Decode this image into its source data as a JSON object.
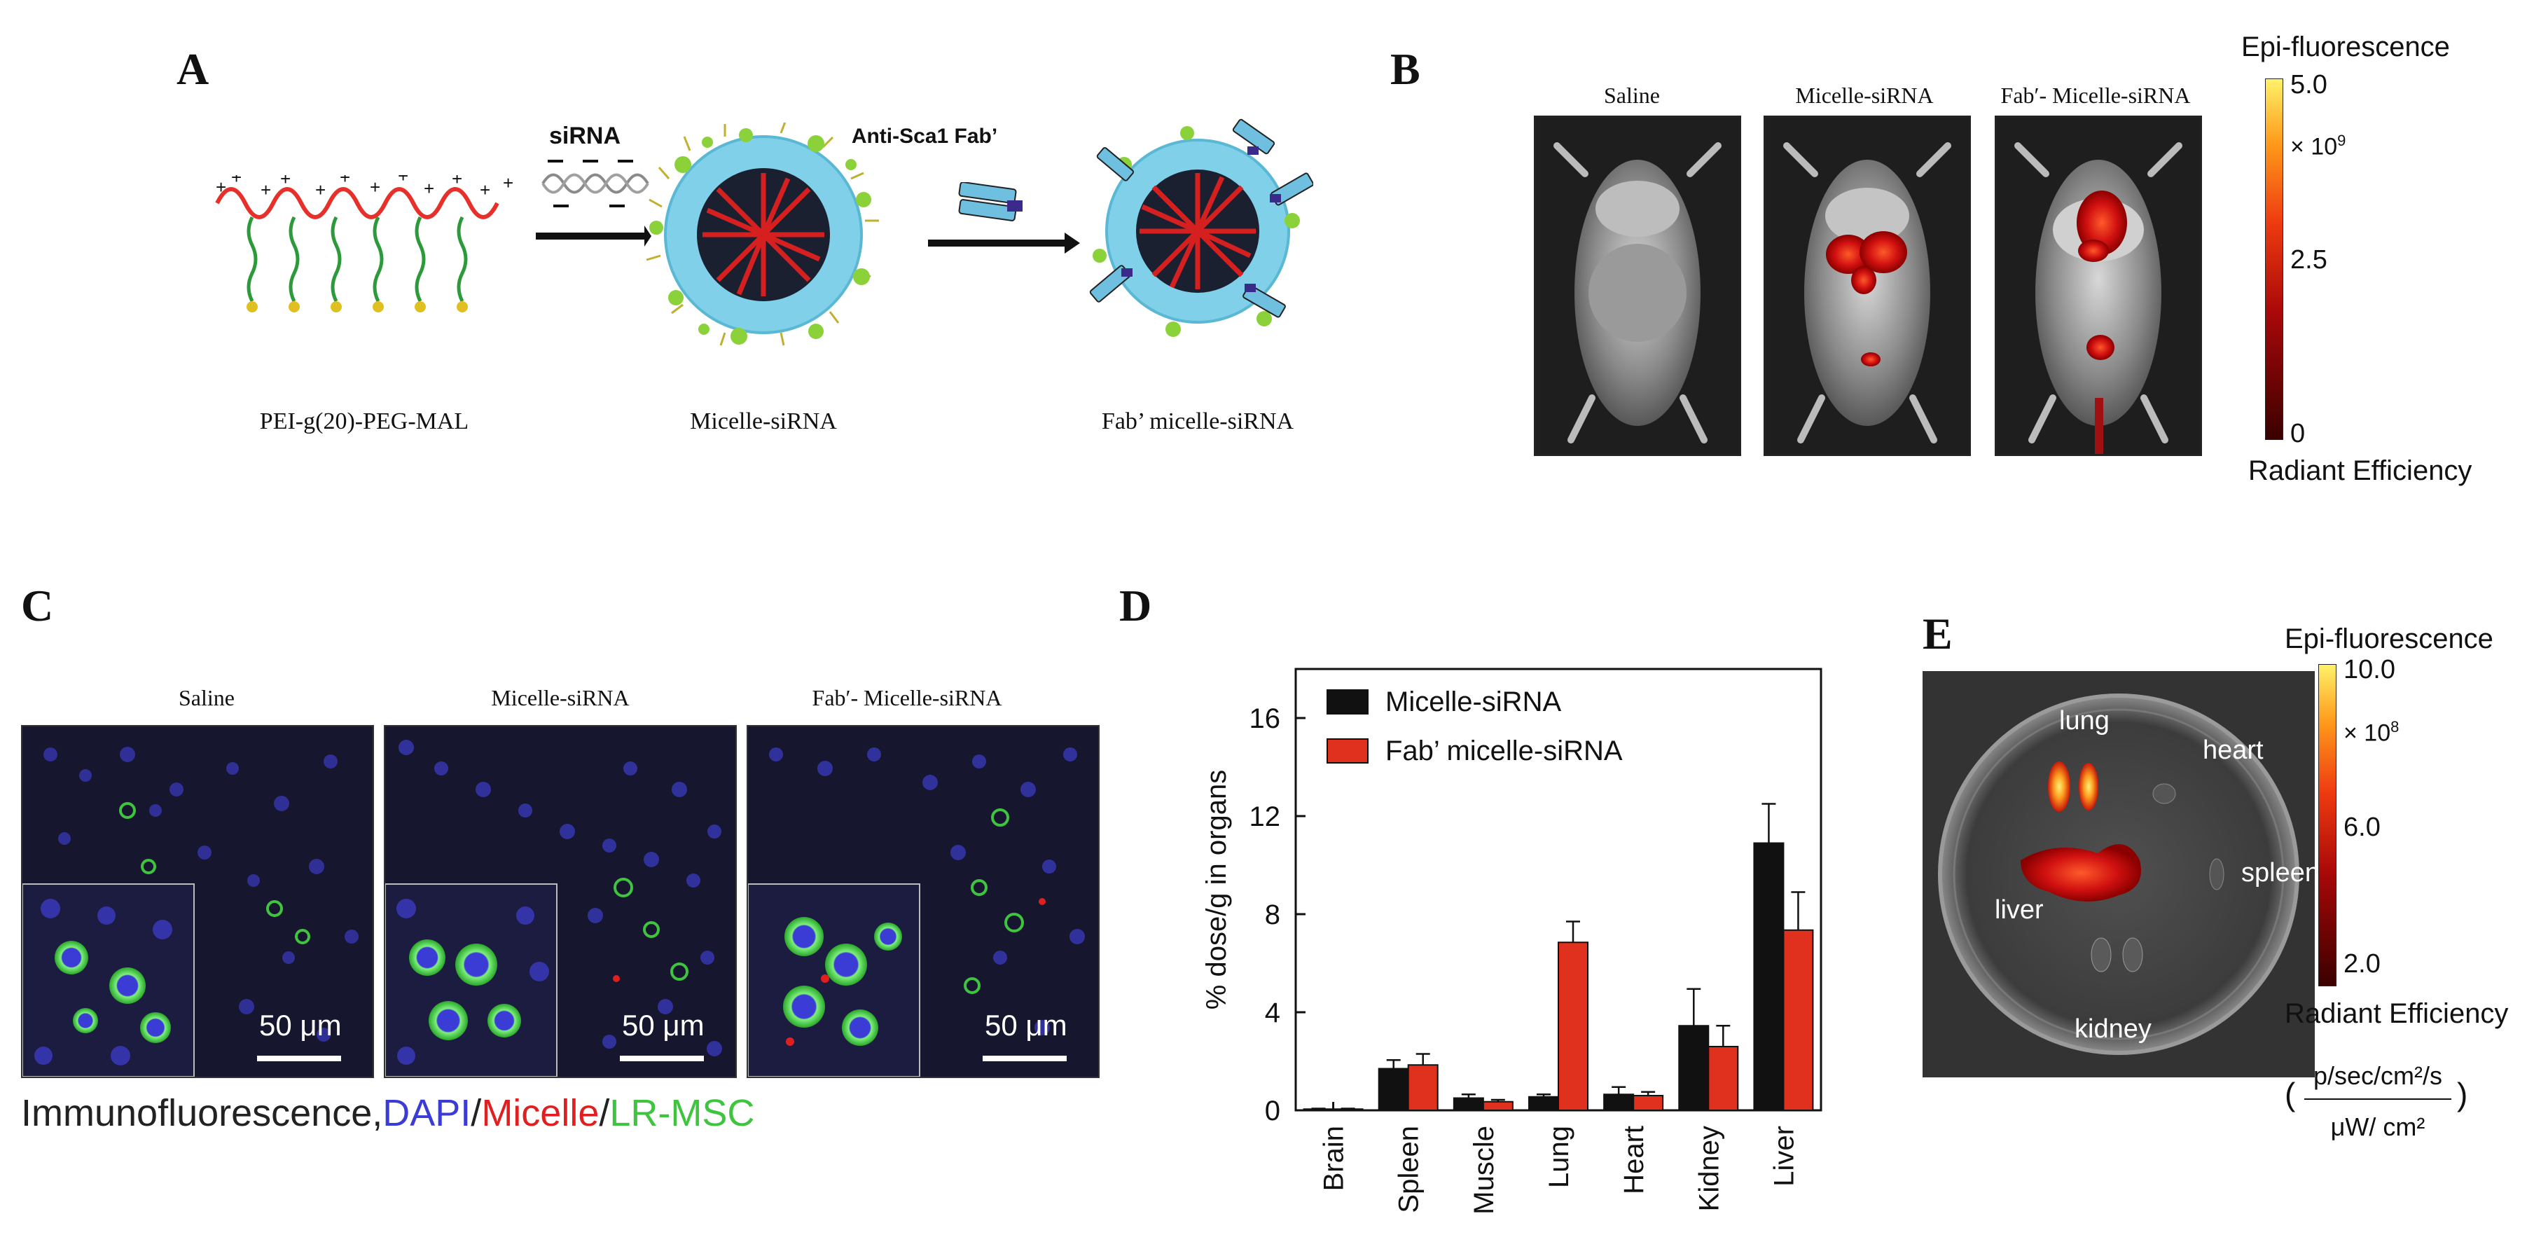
{
  "panelA": {
    "letter": "A",
    "sirna_label": "siRNA",
    "fab_label": "Anti-Sca1 Fab’",
    "labels": [
      "PEI-g(20)-PEG-MAL",
      "Micelle-siRNA",
      "Fab’ micelle-siRNA"
    ],
    "colors": {
      "backbone": "#e8302a",
      "peg": "#2c9a3a",
      "shell": "#7fd0e8",
      "core": "#d62020"
    }
  },
  "panelB": {
    "letter": "B",
    "image_titles": [
      "Saline",
      "Micelle-siRNA",
      "Fab′- Micelle-siRNA"
    ],
    "colorbar": {
      "title": "Epi-fluorescence",
      "max": "5.0",
      "mid": "2.5",
      "min": "0",
      "multiplier_base": "× 10",
      "multiplier_exp": "9",
      "footer": "Radiant Efficiency"
    }
  },
  "panelC": {
    "letter": "C",
    "image_titles": [
      "Saline",
      "Micelle-siRNA",
      "Fab′- Micelle-siRNA"
    ],
    "scale_bar": "50 μm",
    "caption": {
      "prefix": "Immunofluorescence,",
      "dapi": "DAPI",
      "sep1": "/",
      "micelle": "Micelle",
      "sep2": "/",
      "msc": "LR-MSC"
    },
    "colors": {
      "dapi": "#3b3bd6",
      "micelle": "#e02020",
      "msc": "#3ec43e"
    }
  },
  "panelD": {
    "letter": "D",
    "chart_data": {
      "type": "bar",
      "categories": [
        "Brain",
        "Spleen",
        "Muscle",
        "Lung",
        "Heart",
        "Kidney",
        "Liver"
      ],
      "series": [
        {
          "name": "Micelle-siRNA",
          "color": "#111111",
          "values": [
            0.05,
            1.7,
            0.5,
            0.55,
            0.65,
            3.45,
            10.9
          ],
          "errors": [
            0.02,
            0.35,
            0.15,
            0.1,
            0.3,
            1.5,
            1.6
          ]
        },
        {
          "name": "Fab’ micelle-siRNA",
          "color": "#e0301e",
          "values": [
            0.05,
            1.85,
            0.35,
            6.85,
            0.6,
            2.6,
            7.35
          ],
          "errors": [
            0.02,
            0.45,
            0.08,
            0.85,
            0.15,
            0.85,
            1.55
          ]
        }
      ],
      "ylabel": "% dose/g in organs",
      "xlabel": "",
      "ylim": [
        0,
        18
      ],
      "yticks": [
        0,
        4,
        8,
        12,
        16
      ],
      "legend": "top-left",
      "grid": false
    }
  },
  "panelE": {
    "letter": "E",
    "organs": [
      "lung",
      "heart",
      "liver",
      "spleen",
      "kidney"
    ],
    "colorbar": {
      "title": "Epi-fluorescence",
      "max": "10.0",
      "mid": "6.0",
      "low": "2.0",
      "multiplier_base": "× 10",
      "multiplier_exp": "8",
      "footer": "Radiant Efficiency",
      "unit_top": "p/sec/cm²/s",
      "unit_bottom": "μW/ cm²"
    }
  }
}
